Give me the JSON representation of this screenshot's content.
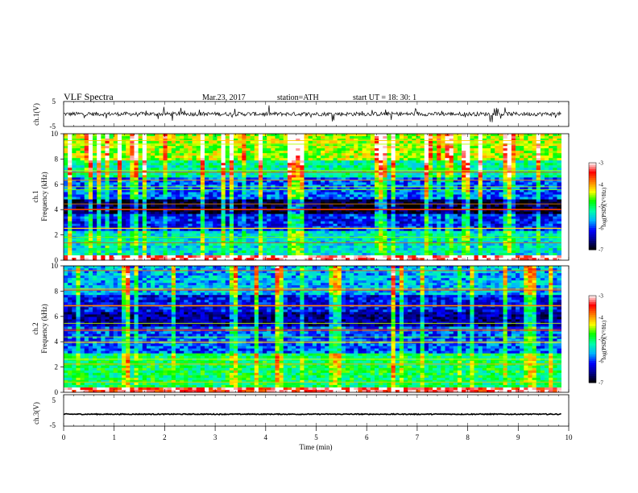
{
  "header": {
    "title": "VLF  Spectra",
    "date": "Mar.23, 2017",
    "station": "station=ATH",
    "start": "start  UT  =    18: 30: 1"
  },
  "chart_data": [
    {
      "type": "line",
      "title": "",
      "ylabel": "ch.1(V)",
      "ylim": [
        -5,
        5
      ],
      "yticks": [
        "5",
        "-5"
      ],
      "xlim": [
        0,
        10
      ],
      "description_values": {
        "baseline": 0,
        "noise_amplitude_V": 0.8,
        "spike_amplitude_V": 3
      }
    },
    {
      "type": "heatmap",
      "panel": "ch.1",
      "ylabel": "ch.1\nFrequency (kHz)",
      "ylabel_line1": "ch.1",
      "ylabel_line2": "Frequency (kHz)",
      "ylim": [
        0,
        10
      ],
      "yticks": [
        "0",
        "2",
        "4",
        "6",
        "8",
        "10"
      ],
      "xlim": [
        0,
        9.85
      ],
      "colorbar": {
        "label": "log(PSD)(V²/Hz)",
        "range": [
          -7,
          -3
        ],
        "ticks": [
          "-3",
          "-4",
          "-5",
          "-6",
          "-7"
        ]
      },
      "band_levels": [
        {
          "f_from": 0.0,
          "f_to": 0.3,
          "level": -3.2
        },
        {
          "f_from": 0.3,
          "f_to": 2.4,
          "level": -5.4
        },
        {
          "f_from": 2.4,
          "f_to": 3.7,
          "level": -6.1
        },
        {
          "f_from": 3.7,
          "f_to": 4.8,
          "level": -6.9
        },
        {
          "f_from": 4.8,
          "f_to": 6.6,
          "level": -5.9
        },
        {
          "f_from": 6.6,
          "f_to": 7.8,
          "level": -5.2
        },
        {
          "f_from": 7.8,
          "f_to": 10.0,
          "level": -4.5
        }
      ]
    },
    {
      "type": "heatmap",
      "panel": "ch.2",
      "ylabel_line1": "ch.2",
      "ylabel_line2": "Frequency (kHz)",
      "ylim": [
        0,
        10
      ],
      "yticks": [
        "0",
        "2",
        "4",
        "6",
        "8",
        "10"
      ],
      "xlim": [
        0,
        9.85
      ],
      "colorbar": {
        "label": "log(PSD)(V²/Hz)",
        "range": [
          -7,
          -3
        ],
        "ticks": [
          "-3",
          "-4",
          "-5",
          "-6",
          "-7"
        ]
      },
      "band_levels": [
        {
          "f_from": 0.0,
          "f_to": 0.3,
          "level": -3.4
        },
        {
          "f_from": 0.3,
          "f_to": 3.0,
          "level": -5.0
        },
        {
          "f_from": 3.0,
          "f_to": 5.2,
          "level": -5.9
        },
        {
          "f_from": 5.2,
          "f_to": 6.4,
          "level": -6.5
        },
        {
          "f_from": 6.4,
          "f_to": 7.6,
          "level": -6.2
        },
        {
          "f_from": 7.6,
          "f_to": 10.0,
          "level": -5.6
        }
      ]
    },
    {
      "type": "line",
      "ylabel": "ch.3(V)",
      "ylim": [
        -5,
        5
      ],
      "yticks": [
        "5",
        "-5"
      ],
      "xlim": [
        0,
        10
      ],
      "description_values": {
        "baseline": -1.2,
        "noise_amplitude_V": 0.15
      }
    }
  ],
  "xaxis": {
    "label": "Time  (min)",
    "ticks": [
      "0",
      "1",
      "2",
      "3",
      "4",
      "5",
      "6",
      "7",
      "8",
      "9",
      "10"
    ],
    "range": [
      0,
      10
    ]
  },
  "colors": {
    "scale": [
      "#000000",
      "#00008b",
      "#0000ff",
      "#00b4ff",
      "#00ffaa",
      "#00ff00",
      "#ffff00",
      "#ff7f00",
      "#ff0000",
      "#ffffff"
    ]
  }
}
